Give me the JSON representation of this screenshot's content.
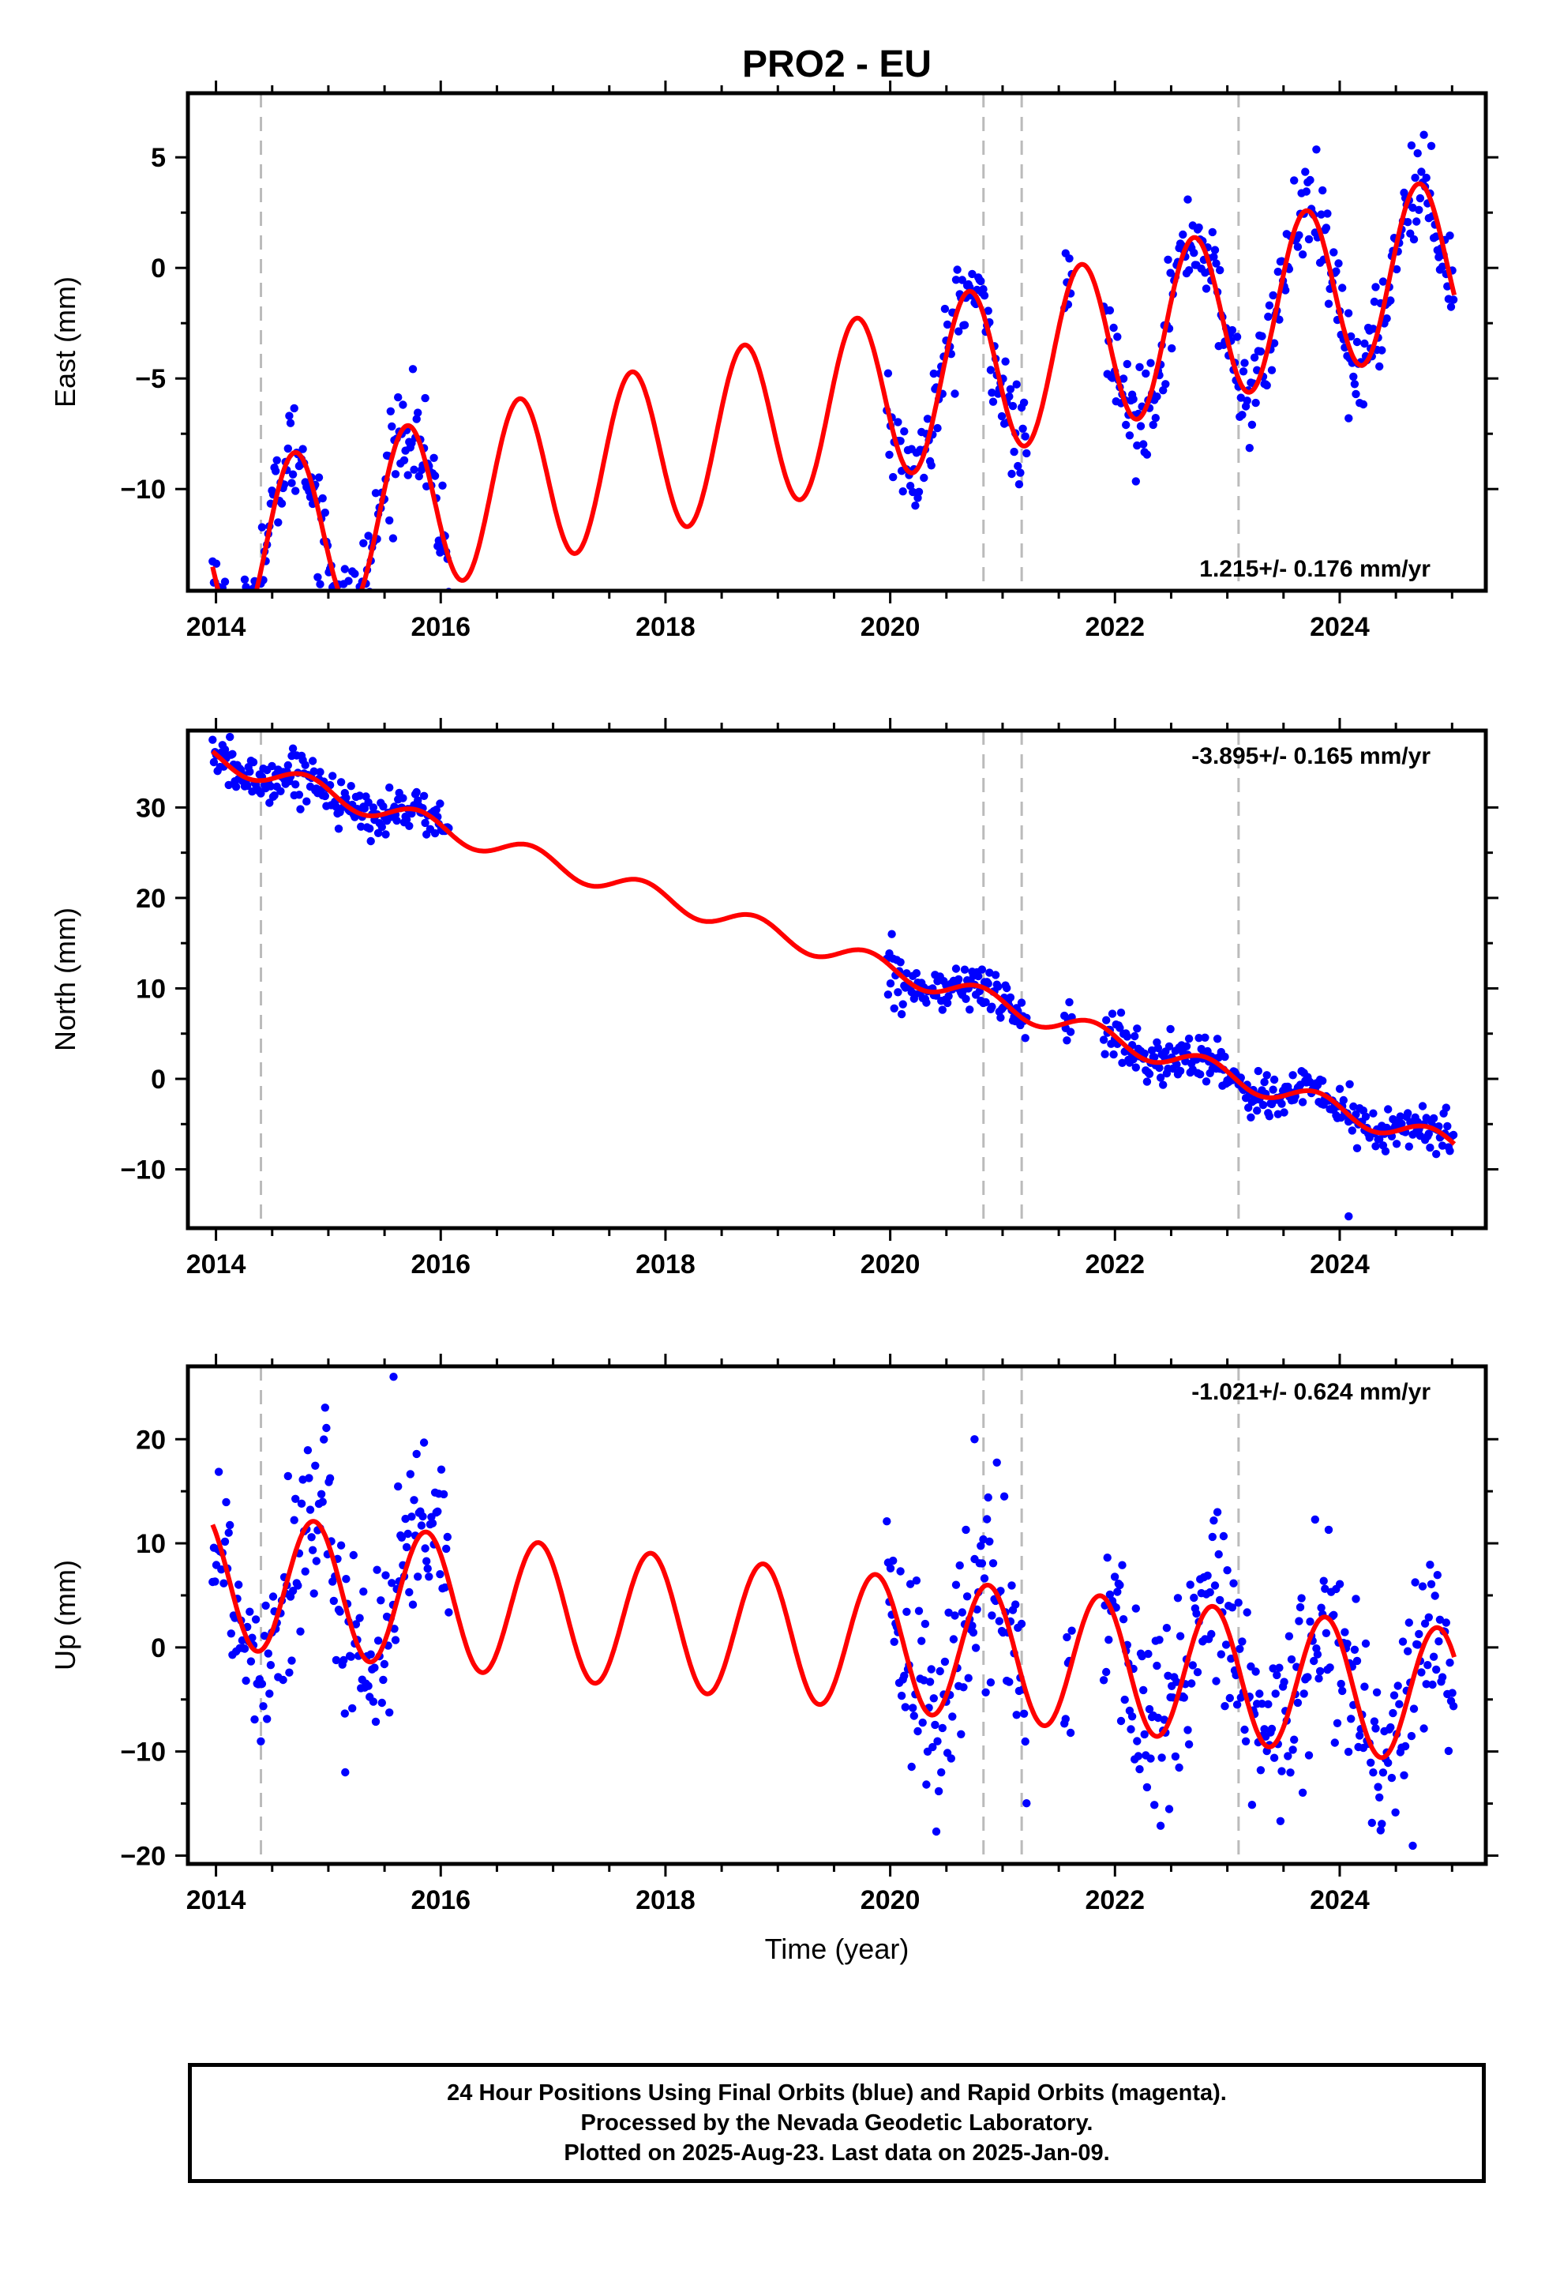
{
  "title": "PRO2 - EU",
  "xlabel": "Time (year)",
  "footer": {
    "line1": "24 Hour Positions Using Final Orbits (blue) and Rapid Orbits (magenta).",
    "line2": "Processed by the Nevada Geodetic Laboratory.",
    "line3": "Plotted on 2025-Aug-23. Last data on 2025-Jan-09."
  },
  "colors": {
    "data": "#0000ff",
    "model": "#ff0000",
    "event_line": "#bbbbbb",
    "frame": "#000000"
  },
  "chart_data": [
    {
      "type": "scatter",
      "component": "east",
      "ylabel": "East (mm)",
      "rate_text": "1.215+/- 0.176 mm/yr",
      "rate_position": "bottom-right",
      "xlim": [
        2013.75,
        2025.3
      ],
      "ylim": [
        -14.6,
        7.9
      ],
      "xticks": [
        2014,
        2016,
        2018,
        2020,
        2022,
        2024
      ],
      "xtick_labels": [
        "2014",
        "2016",
        "2018",
        "2020",
        "2022",
        "2024"
      ],
      "yticks": [
        -10,
        -5,
        0,
        5
      ],
      "ytick_labels": [
        "−10",
        "−5",
        "0",
        "5"
      ],
      "event_lines": [
        2014.4,
        2020.83,
        2021.17,
        2023.1
      ],
      "data_segments": [
        [
          2013.97,
          2016.08
        ],
        [
          2019.97,
          2021.22
        ],
        [
          2021.55,
          2021.62
        ],
        [
          2021.9,
          2025.02
        ]
      ],
      "model": {
        "offset": -13.0,
        "rate": 1.215,
        "amplitude": 3.8,
        "phase": 0.45,
        "noise": 1.1
      },
      "outliers": [
        {
          "x": 2024.08,
          "y": -6.8
        }
      ],
      "grid": false,
      "series": [
        {
          "values": "daily positions"
        },
        {
          "values": "model fit"
        }
      ]
    },
    {
      "type": "scatter",
      "component": "north",
      "ylabel": "North (mm)",
      "rate_text": "-3.895+/- 0.165 mm/yr",
      "rate_position": "top-right",
      "xlim": [
        2013.75,
        2025.3
      ],
      "ylim": [
        -16.5,
        38.5
      ],
      "xticks": [
        2014,
        2016,
        2018,
        2020,
        2022,
        2024
      ],
      "xtick_labels": [
        "2014",
        "2016",
        "2018",
        "2020",
        "2022",
        "2024"
      ],
      "yticks": [
        -10,
        0,
        10,
        20,
        30
      ],
      "ytick_labels": [
        "−10",
        "0",
        "10",
        "20",
        "30"
      ],
      "event_lines": [
        2014.4,
        2020.83,
        2021.17,
        2023.1
      ],
      "data_segments": [
        [
          2013.97,
          2016.08
        ],
        [
          2019.97,
          2021.22
        ],
        [
          2021.55,
          2021.62
        ],
        [
          2021.9,
          2025.02
        ]
      ],
      "model": {
        "offset": 35.5,
        "rate": -3.895,
        "amplitude": 1.2,
        "phase": 0.55,
        "noise": 1.3
      },
      "outliers": [
        {
          "x": 2024.08,
          "y": -15.2
        }
      ],
      "grid": false,
      "series": [
        {
          "values": "daily positions"
        },
        {
          "values": "model fit"
        }
      ]
    },
    {
      "type": "scatter",
      "component": "up",
      "ylabel": "Up (mm)",
      "rate_text": "-1.021+/- 0.624 mm/yr",
      "rate_position": "top-right",
      "xlim": [
        2013.75,
        2025.3
      ],
      "ylim": [
        -20.8,
        27.0
      ],
      "xticks": [
        2014,
        2016,
        2018,
        2020,
        2022,
        2024
      ],
      "xtick_labels": [
        "2014",
        "2016",
        "2018",
        "2020",
        "2022",
        "2024"
      ],
      "yticks": [
        -20,
        -10,
        0,
        10,
        20
      ],
      "ytick_labels": [
        "−20",
        "−10",
        "0",
        "10",
        "20"
      ],
      "event_lines": [
        2014.4,
        2020.83,
        2021.17,
        2023.1
      ],
      "data_segments": [
        [
          2013.97,
          2016.08
        ],
        [
          2019.97,
          2021.22
        ],
        [
          2021.55,
          2021.62
        ],
        [
          2021.9,
          2025.02
        ]
      ],
      "model": {
        "offset": 6.5,
        "rate": -1.021,
        "amplitude": 6.5,
        "phase": 0.62,
        "noise": 4.8
      },
      "outliers": [
        {
          "x": 2015.58,
          "y": 26.0
        },
        {
          "x": 2020.75,
          "y": 20.0
        },
        {
          "x": 2015.15,
          "y": -12.0
        }
      ],
      "grid": false,
      "series": [
        {
          "values": "daily positions"
        },
        {
          "values": "model fit"
        }
      ]
    }
  ]
}
